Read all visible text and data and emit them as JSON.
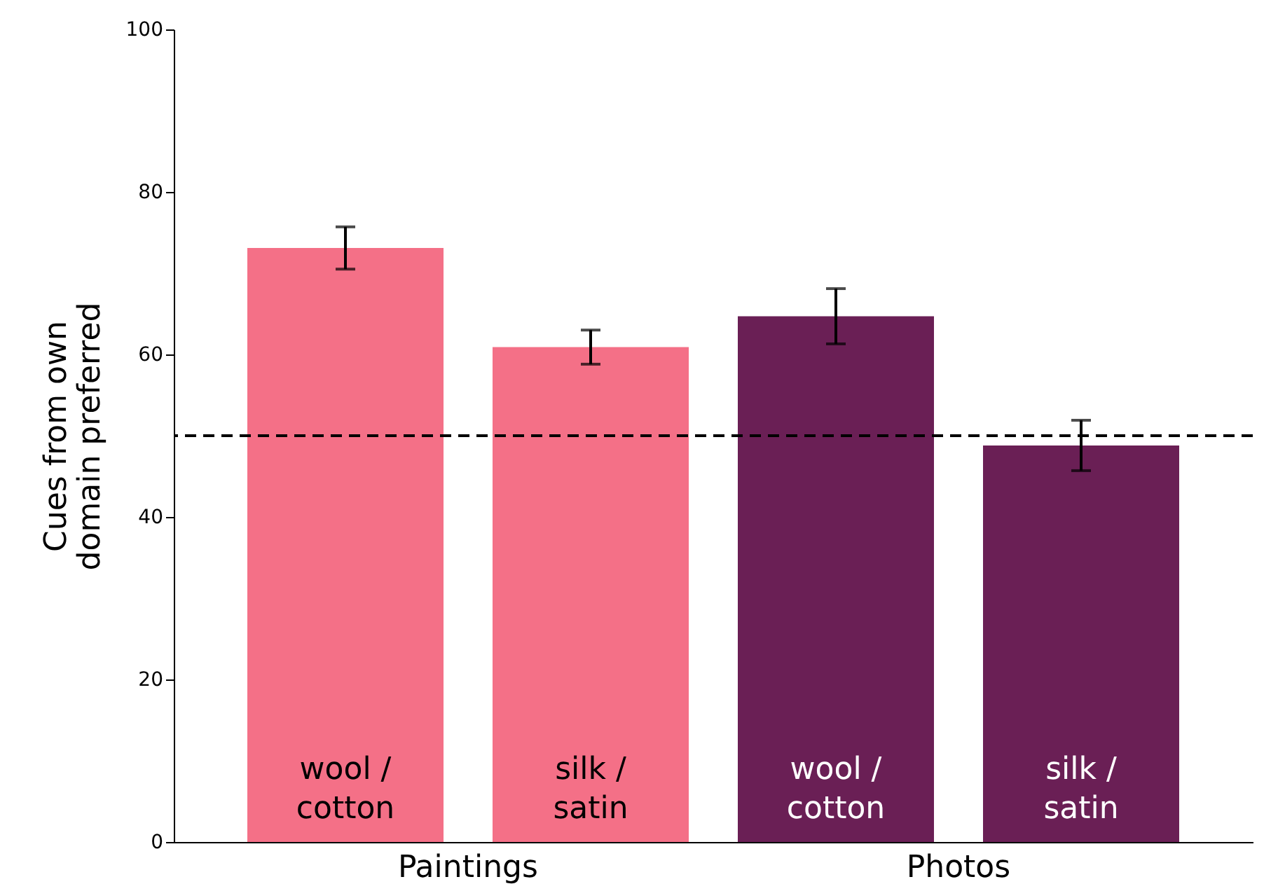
{
  "chart_data": {
    "type": "bar",
    "ylabel": "Cues from own domain preferred",
    "categories": [
      "wool / cotton",
      "silk / satin",
      "wool / cotton",
      "silk / satin"
    ],
    "values": [
      73.1,
      60.9,
      64.7,
      48.8
    ],
    "colors": [
      "#f47087",
      "#f47087",
      "#6a1f55",
      "#6a1f55"
    ],
    "errors": [
      2.6,
      2.1,
      3.4,
      3.1
    ],
    "ylim": [
      0,
      100
    ],
    "yticks": [
      0,
      20,
      40,
      60,
      80,
      100
    ],
    "grid": false,
    "ref_lines": [
      {
        "axis": "y",
        "value": 50,
        "line_style": "dashed",
        "color": "#000000"
      }
    ],
    "annotations": [
      "Paintings",
      "Photos"
    ]
  }
}
